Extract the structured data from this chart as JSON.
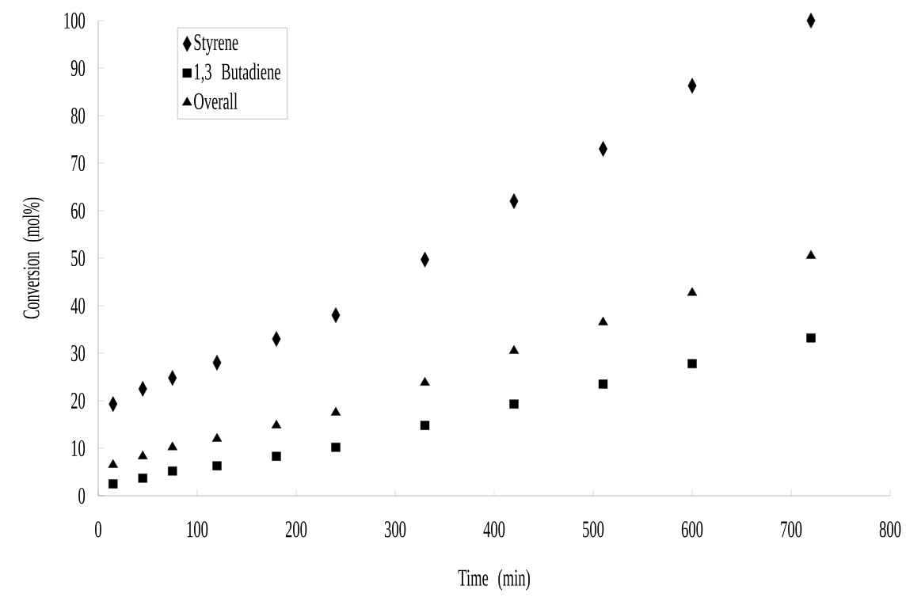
{
  "chart_data": {
    "type": "scatter",
    "xlabel": "Time (min)",
    "ylabel": "Conversion (mol%)",
    "x": [
      15,
      45,
      75,
      120,
      180,
      240,
      330,
      420,
      510,
      600,
      720
    ],
    "series": [
      {
        "name": "Styrene",
        "color": "#000000",
        "marker": "diamond",
        "values": [
          19.3,
          22.5,
          24.8,
          28,
          33,
          38,
          49.7,
          62,
          73,
          86.3,
          100
        ]
      },
      {
        "name": "1,3 Butadiene",
        "color": "#000000",
        "marker": "square",
        "values": [
          2.5,
          3.7,
          5.2,
          6.3,
          8.3,
          10.2,
          14.8,
          19.3,
          23.5,
          27.8,
          33.2
        ]
      },
      {
        "name": "Overall",
        "color": "#000000",
        "marker": "triangle",
        "values": [
          6.5,
          8.3,
          10.2,
          12,
          14.8,
          17.5,
          23.8,
          30.5,
          36.5,
          42.7,
          50.5
        ]
      }
    ],
    "xlim": [
      0,
      800
    ],
    "xticks": [
      0,
      100,
      200,
      300,
      400,
      500,
      600,
      700,
      800
    ],
    "ylim": [
      0,
      100
    ],
    "yticks": [
      0,
      10,
      20,
      30,
      40,
      50,
      60,
      70,
      80,
      90,
      100
    ],
    "legend": "top left",
    "grid": false
  }
}
